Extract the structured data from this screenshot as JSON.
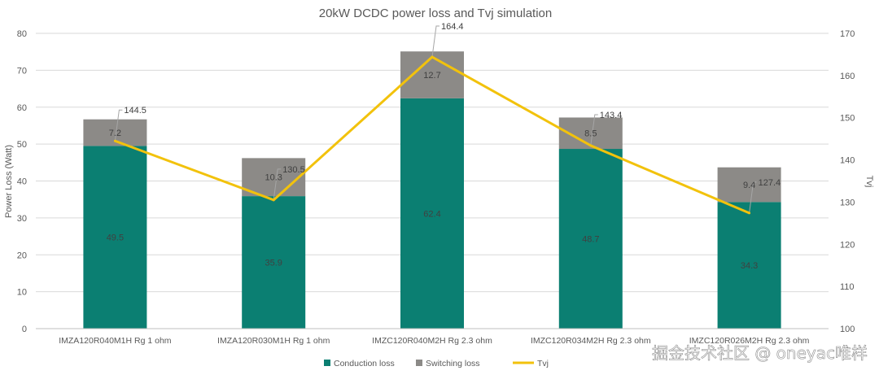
{
  "chart_data": {
    "type": "bar",
    "stacked": true,
    "title": "20kW DCDC power loss and Tvj simulation",
    "categories": [
      "IMZA120R040M1H Rg 1 ohm",
      "IMZA120R030M1H Rg 1 ohm",
      "IMZC120R040M2H Rg 2.3 ohm",
      "IMZC120R034M2H Rg 2.3 ohm",
      "IMZC120R026M2H Rg 2.3 ohm"
    ],
    "series": [
      {
        "name": "Conduction loss",
        "type": "bar",
        "axis": "left",
        "color": "#0b7f72",
        "values": [
          49.5,
          35.9,
          62.4,
          48.7,
          34.3
        ],
        "labels": [
          "49.5",
          "35.9",
          "62.4",
          "48.7",
          "34.3"
        ]
      },
      {
        "name": "Switching loss",
        "type": "bar",
        "axis": "left",
        "color": "#8c8a87",
        "values": [
          7.2,
          10.3,
          12.7,
          8.5,
          9.4
        ],
        "labels": [
          "7.2",
          "10.3",
          "12.7",
          "8.5",
          "9.4"
        ]
      },
      {
        "name": "Tvj",
        "type": "line",
        "axis": "right",
        "color": "#f2c20c",
        "values": [
          144.5,
          130.5,
          164.4,
          143.4,
          127.4
        ],
        "labels": [
          "144.5",
          "130.5",
          "164.4",
          "143.4",
          "127.4"
        ]
      }
    ],
    "ylabel": "Power Loss (Watt)",
    "y2label": "Tvj",
    "ylim": [
      0,
      80
    ],
    "y2lim": [
      100,
      170
    ],
    "yticks": [
      "0",
      "10",
      "20",
      "30",
      "40",
      "50",
      "60",
      "70",
      "80"
    ],
    "y2ticks": [
      "100",
      "110",
      "120",
      "130",
      "140",
      "150",
      "160",
      "170"
    ],
    "grid": true,
    "legend_position": "bottom"
  },
  "watermark": "掘金技术社区 @ oneyac唯样"
}
